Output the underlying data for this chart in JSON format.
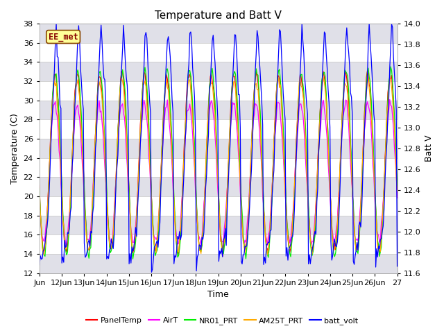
{
  "title": "Temperature and Batt V",
  "ylabel_left": "Temperature (C)",
  "ylabel_right": "Batt V",
  "xlabel": "Time",
  "ylim_left": [
    12,
    38
  ],
  "ylim_right": [
    11.6,
    14.0
  ],
  "xlim": [
    0,
    16
  ],
  "xtick_labels": [
    "Jun",
    "12Jun",
    "13Jun",
    "14Jun",
    "15Jun",
    "16Jun",
    "17Jun",
    "18Jun",
    "19Jun",
    "20Jun",
    "21Jun",
    "22Jun",
    "23Jun",
    "24Jun",
    "25Jun",
    "26Jun",
    "27"
  ],
  "yticks_left": [
    12,
    14,
    16,
    18,
    20,
    22,
    24,
    26,
    28,
    30,
    32,
    34,
    36,
    38
  ],
  "yticks_right": [
    11.6,
    11.8,
    12.0,
    12.2,
    12.4,
    12.6,
    12.8,
    13.0,
    13.2,
    13.4,
    13.6,
    13.8,
    14.0
  ],
  "series_colors": {
    "PanelTemp": "#ff0000",
    "AirT": "#ff00ff",
    "NR01_PRT": "#00ee00",
    "AM25T_PRT": "#ffaa00",
    "batt_volt": "#0000ff"
  },
  "station_label": "EE_met",
  "station_label_fgcolor": "#880000",
  "station_label_bgcolor": "#ffff99",
  "station_label_edgecolor": "#884400",
  "background_color": "#ffffff",
  "plot_bg_color": "#ffffff",
  "band_color_light": "#ffffff",
  "band_color_dark": "#e0e0e8",
  "grid_color": "#cccccc",
  "title_fontsize": 11,
  "axis_fontsize": 9,
  "tick_fontsize": 8
}
